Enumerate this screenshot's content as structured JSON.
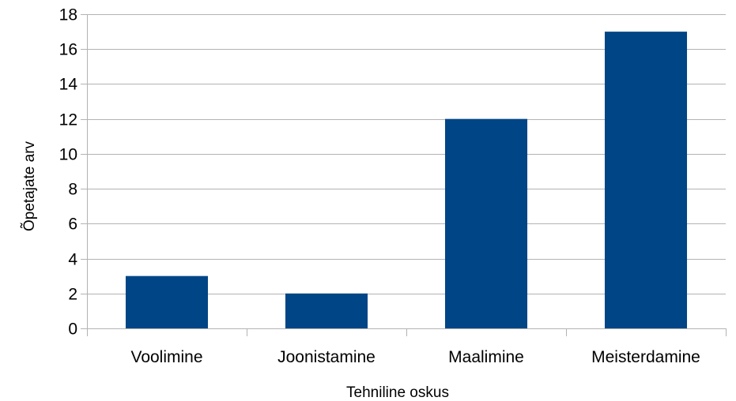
{
  "chart_data": {
    "type": "bar",
    "title": "",
    "xlabel": "Tehniline oskus",
    "ylabel": "Õpetajate arv",
    "categories": [
      "Voolimine",
      "Joonistamine",
      "Maalimine",
      "Meisterdamine"
    ],
    "values": [
      3,
      2,
      12,
      17
    ],
    "ylim": [
      0,
      18
    ],
    "yticks": [
      0,
      2,
      4,
      6,
      8,
      10,
      12,
      14,
      16,
      18
    ],
    "grid": true,
    "legend": "none",
    "colors": {
      "bar": "#004586",
      "grid": "#b3b3b3",
      "axis": "#b3b3b3"
    }
  }
}
